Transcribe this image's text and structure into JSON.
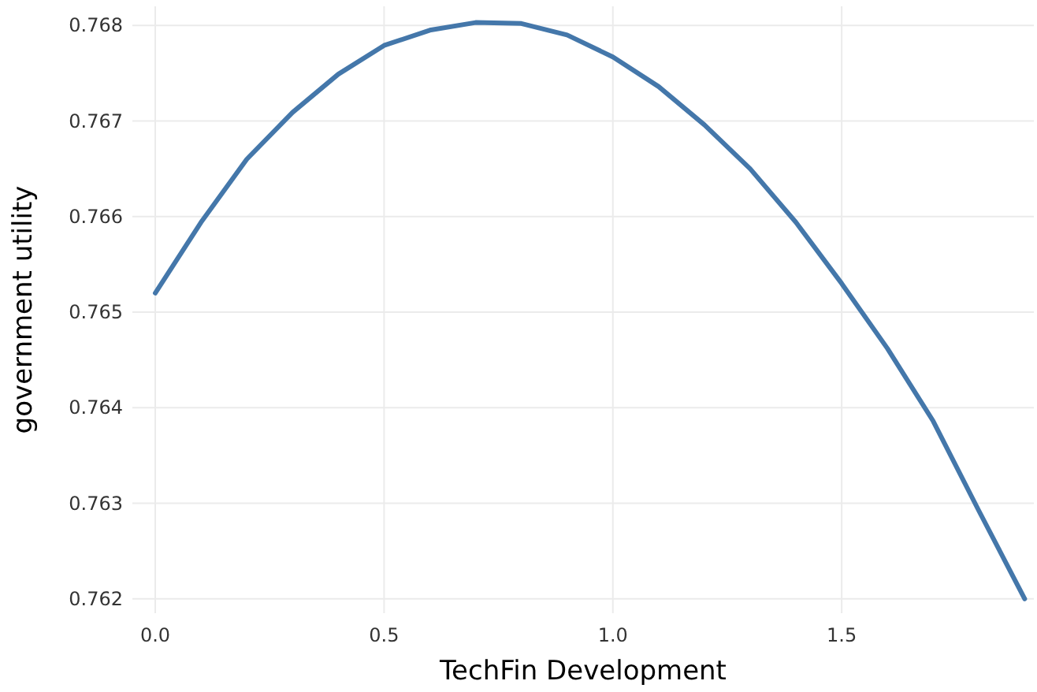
{
  "chart_data": {
    "type": "line",
    "xlabel": "TechFin Development",
    "ylabel": "government utility",
    "x": [
      0,
      0.1,
      0.2,
      0.3,
      0.4,
      0.5,
      0.6,
      0.7,
      0.8,
      0.9,
      1.0,
      1.1,
      1.2,
      1.3,
      1.4,
      1.5,
      1.6,
      1.7,
      1.8,
      1.9
    ],
    "series": [
      {
        "color": "#4477aa",
        "values": [
          0.7652,
          0.76594,
          0.7666,
          0.76709,
          0.76749,
          0.76779,
          0.76795,
          0.76803,
          0.76802,
          0.7679,
          0.76767,
          0.76736,
          0.76696,
          0.7665,
          0.76594,
          0.7653,
          0.76462,
          0.76386,
          0.76292,
          0.762
        ]
      }
    ],
    "xlim": [
      -0.05,
      1.92
    ],
    "xticks": [
      {
        "value": 0,
        "label": "0.0"
      },
      0.5,
      {
        "value": 1,
        "label": "1.0"
      },
      1.5
    ],
    "ylim": [
      0.76185,
      0.7682
    ],
    "yticks": [
      0.762,
      0.763,
      0.764,
      0.765,
      0.766,
      0.767,
      0.768
    ],
    "grid": true,
    "marker": "none",
    "line_style": "solid"
  }
}
